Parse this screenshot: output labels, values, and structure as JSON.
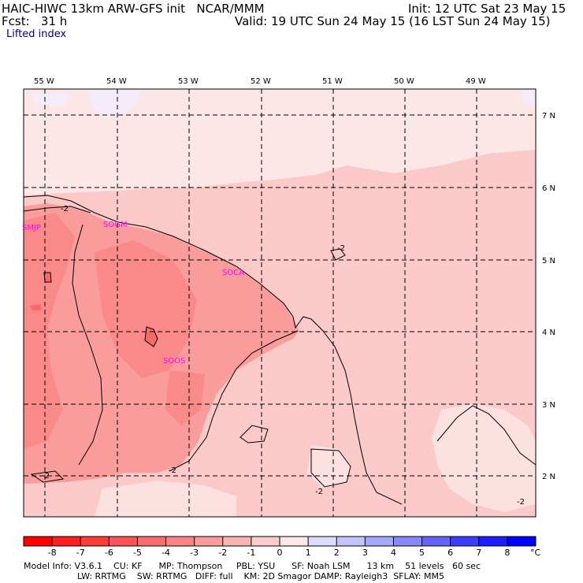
{
  "header": {
    "model_line": "HAIC-HIWC 13km ARW-GFS init   NCAR/MMM",
    "init_line": "Init: 12 UTC Sat 23 May 15",
    "fcst_line": "Fcst:   31 h",
    "valid_line": "Valid: 19 UTC Sun 24 May 15 (16 LST Sun 24 May 15)",
    "field_name": "Lifted index"
  },
  "map": {
    "lon_labels": [
      "55 W",
      "54 W",
      "53 W",
      "52 W",
      "51 W",
      "50 W",
      "49 W"
    ],
    "lat_labels": [
      "7 N",
      "6 N",
      "5 N",
      "4 N",
      "3 N",
      "2 N"
    ],
    "stations": [
      "SMJP",
      "SOGM",
      "SOCA",
      "SOOS"
    ],
    "contour_labels": [
      "-2",
      "-2",
      "-2",
      "-2",
      "-2",
      "-2"
    ]
  },
  "colorbar": {
    "tick_labels": [
      "-8",
      "-7",
      "-6",
      "-5",
      "-4",
      "-3",
      "-2",
      "-1",
      "0",
      "1",
      "2",
      "3",
      "4",
      "5",
      "6",
      "7",
      "8"
    ],
    "unit": "°C",
    "colors": [
      "#ff0000",
      "#fe2020",
      "#fd3c3c",
      "#fc5454",
      "#fb6c6c",
      "#fa8484",
      "#fa9c9c",
      "#fbb4b4",
      "#fccccc",
      "#fee8e8",
      "#dcdcfc",
      "#c4c4fc",
      "#a8a8fb",
      "#8888fa",
      "#6464fa",
      "#3c3cfb",
      "#1e1efd",
      "#0000ff"
    ]
  },
  "footer": {
    "line1": "Model Info: V3.6.1    CU: KF      MP: Thompson     PBL: YSU      SF: Noah LSM      13 km    51 levels   60 sec",
    "line2": "LW: RRTMG    SW: RRTMG   DIFF: full    KM: 2D Smagor DAMP: Rayleigh3  SFLAY: MM5"
  }
}
